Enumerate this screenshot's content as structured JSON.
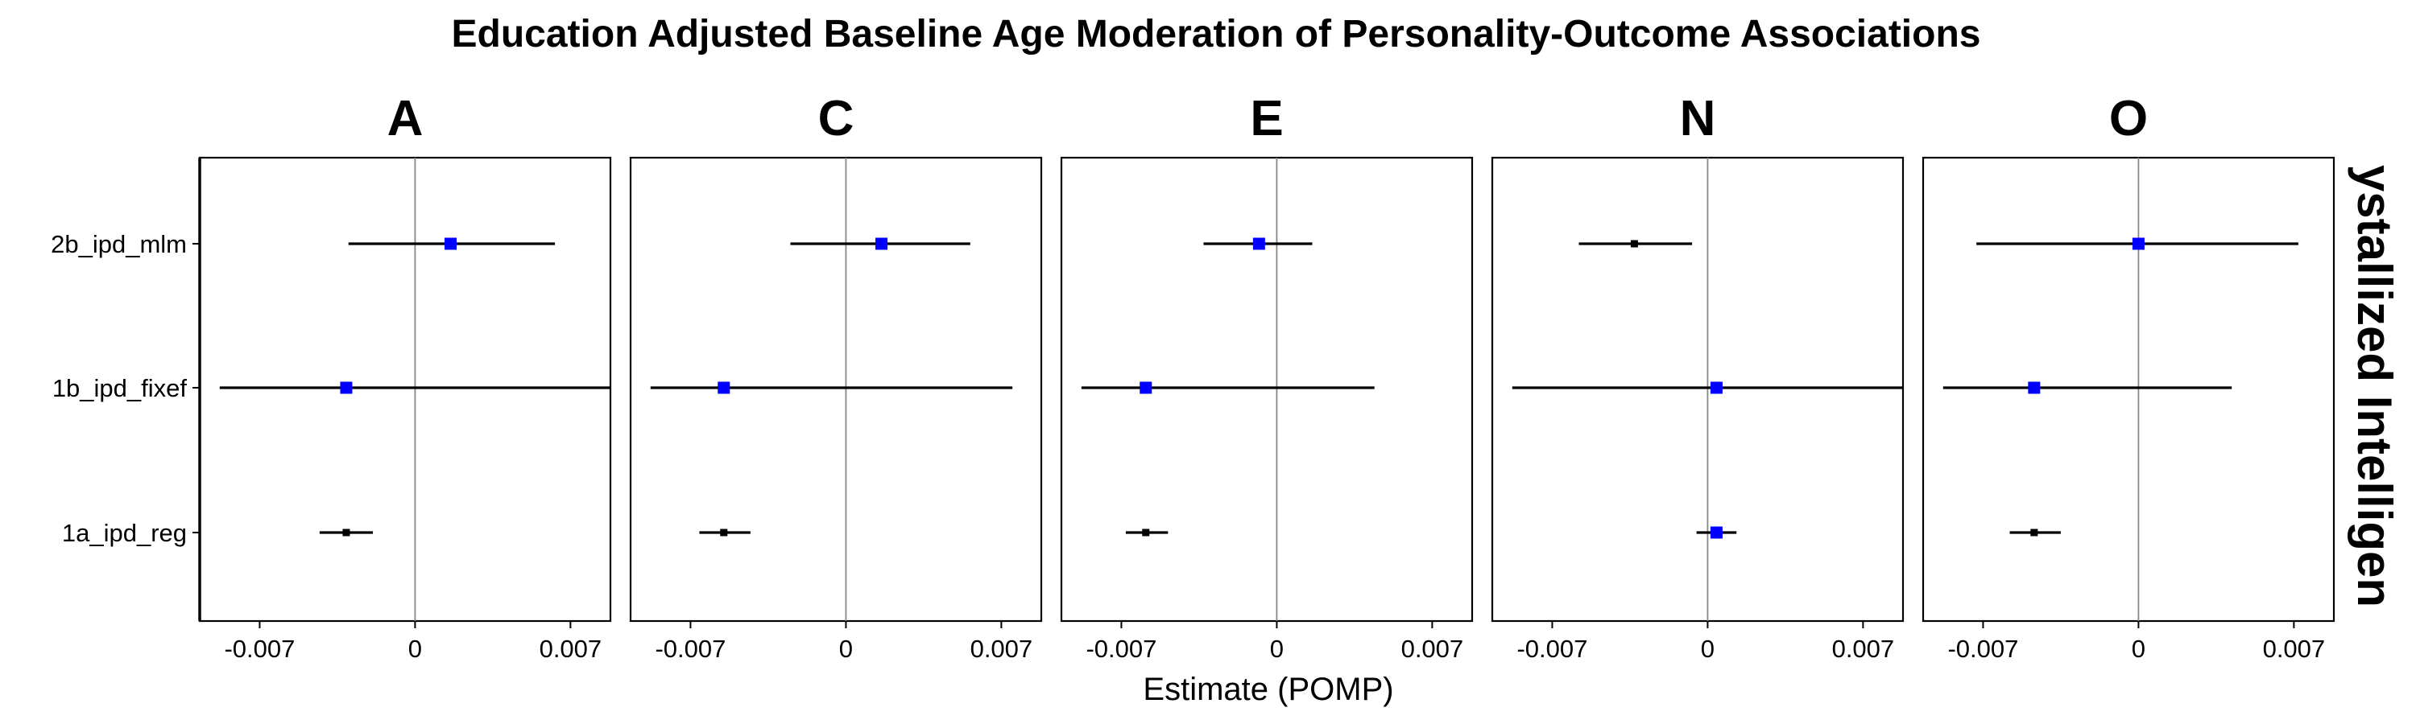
{
  "chart_data": {
    "type": "scatter",
    "subtype": "forest-plot-faceted",
    "title": "Education Adjusted Baseline Age Moderation of Personality-Outcome Associations",
    "xlabel": "Estimate (POMP)",
    "ylabel": "",
    "strip_right": "ystallized Intelligen",
    "x_ticks": [
      -0.007,
      0,
      0.007
    ],
    "x_tick_labels": [
      "-0.007",
      "0",
      "0.007"
    ],
    "xlim": [
      -0.0097,
      0.0088
    ],
    "y_categories": [
      "2b_ipd_mlm",
      "1b_ipd_fixef",
      "1a_ipd_reg"
    ],
    "reference_line": 0,
    "grid": false,
    "colors": {
      "significant": "#0000ff",
      "nonsignificant": "#000000",
      "interval": "#000000",
      "reference": "#888888"
    },
    "panels": [
      {
        "label": "A",
        "points": [
          {
            "model": "2b_ipd_mlm",
            "estimate": 0.0016,
            "lower": -0.003,
            "upper": 0.0063,
            "significant": true
          },
          {
            "model": "1b_ipd_fixef",
            "estimate": -0.0031,
            "lower": -0.0088,
            "upper": 0.0088,
            "significant": true
          },
          {
            "model": "1a_ipd_reg",
            "estimate": -0.0031,
            "lower": -0.0043,
            "upper": -0.0019,
            "significant": false
          }
        ]
      },
      {
        "label": "C",
        "points": [
          {
            "model": "2b_ipd_mlm",
            "estimate": 0.0016,
            "lower": -0.0025,
            "upper": 0.0056,
            "significant": true
          },
          {
            "model": "1b_ipd_fixef",
            "estimate": -0.0055,
            "lower": -0.0088,
            "upper": 0.0075,
            "significant": true
          },
          {
            "model": "1a_ipd_reg",
            "estimate": -0.0055,
            "lower": -0.0066,
            "upper": -0.0043,
            "significant": false
          }
        ]
      },
      {
        "label": "E",
        "points": [
          {
            "model": "2b_ipd_mlm",
            "estimate": -0.0008,
            "lower": -0.0033,
            "upper": 0.0016,
            "significant": true
          },
          {
            "model": "1b_ipd_fixef",
            "estimate": -0.0059,
            "lower": -0.0088,
            "upper": 0.0044,
            "significant": true
          },
          {
            "model": "1a_ipd_reg",
            "estimate": -0.0059,
            "lower": -0.0068,
            "upper": -0.0049,
            "significant": false
          }
        ]
      },
      {
        "label": "N",
        "points": [
          {
            "model": "2b_ipd_mlm",
            "estimate": -0.0033,
            "lower": -0.0058,
            "upper": -0.0007,
            "significant": false
          },
          {
            "model": "1b_ipd_fixef",
            "estimate": 0.0004,
            "lower": -0.0088,
            "upper": 0.0088,
            "significant": true
          },
          {
            "model": "1a_ipd_reg",
            "estimate": 0.0004,
            "lower": -0.0005,
            "upper": 0.0013,
            "significant": true
          }
        ]
      },
      {
        "label": "O",
        "points": [
          {
            "model": "2b_ipd_mlm",
            "estimate": 0.0,
            "lower": -0.0073,
            "upper": 0.0072,
            "significant": true
          },
          {
            "model": "1b_ipd_fixef",
            "estimate": -0.0047,
            "lower": -0.0088,
            "upper": 0.0042,
            "significant": true
          },
          {
            "model": "1a_ipd_reg",
            "estimate": -0.0047,
            "lower": -0.0058,
            "upper": -0.0035,
            "significant": false
          }
        ]
      }
    ]
  }
}
